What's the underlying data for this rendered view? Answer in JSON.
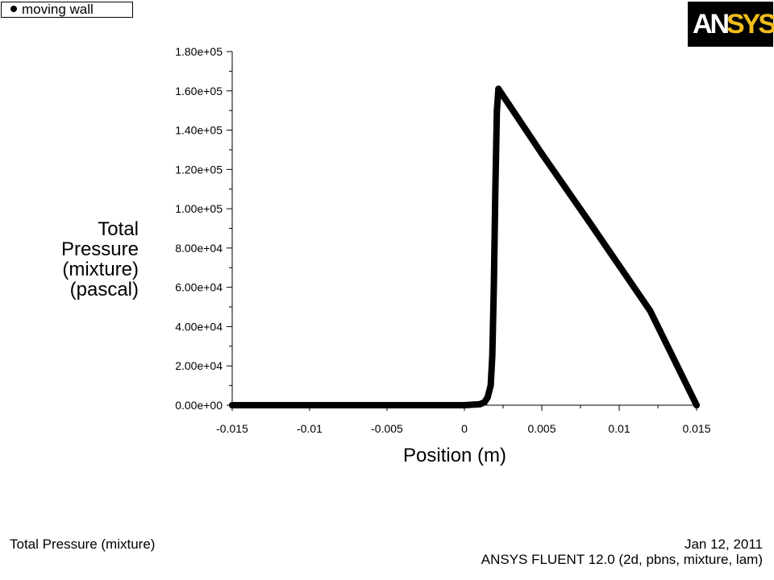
{
  "legend": {
    "label": "moving  wall"
  },
  "logo": {
    "part1": "AN",
    "part2": "SYS"
  },
  "footer": {
    "left": "Total Pressure (mixture)",
    "date": "Jan 12, 2011",
    "version": "ANSYS FLUENT 12.0 (2d, pbns, mixture, lam)"
  },
  "colors": {
    "line": "#000000",
    "logo_bg": "#000000",
    "logo_accent": "#f0bd1b"
  },
  "chart_data": {
    "type": "scatter",
    "xlabel": "Position (m)",
    "ylabel_lines": [
      "Total",
      "Pressure",
      "(mixture)",
      "(pascal)"
    ],
    "xlim": [
      -0.015,
      0.015
    ],
    "ylim": [
      0,
      180000
    ],
    "xticks": [
      -0.015,
      -0.01,
      -0.005,
      0,
      0.005,
      0.01,
      0.015
    ],
    "xtick_labels": [
      "-0.015",
      "-0.01",
      "-0.005",
      "0",
      "0.005",
      "0.01",
      "0.015"
    ],
    "yticks": [
      0,
      20000,
      40000,
      60000,
      80000,
      100000,
      120000,
      140000,
      160000,
      180000
    ],
    "ytick_labels": [
      "0.00e+00",
      "2.00e+04",
      "4.00e+04",
      "6.00e+04",
      "8.00e+04",
      "1.00e+05",
      "1.20e+05",
      "1.40e+05",
      "1.60e+05",
      "1.80e+05"
    ],
    "series": [
      {
        "name": "moving  wall",
        "x": [
          -0.015,
          -0.01,
          -0.005,
          0,
          0.001,
          0.0013,
          0.0015,
          0.0017,
          0.0018,
          0.0019,
          0.002,
          0.0021,
          0.0022,
          0.005,
          0.008,
          0.01,
          0.012,
          0.015
        ],
        "y": [
          0,
          0,
          0,
          0,
          500,
          1500,
          4000,
          10000,
          25000,
          60000,
          110000,
          150000,
          161000,
          128000,
          94000,
          71000,
          48000,
          0
        ]
      }
    ]
  }
}
